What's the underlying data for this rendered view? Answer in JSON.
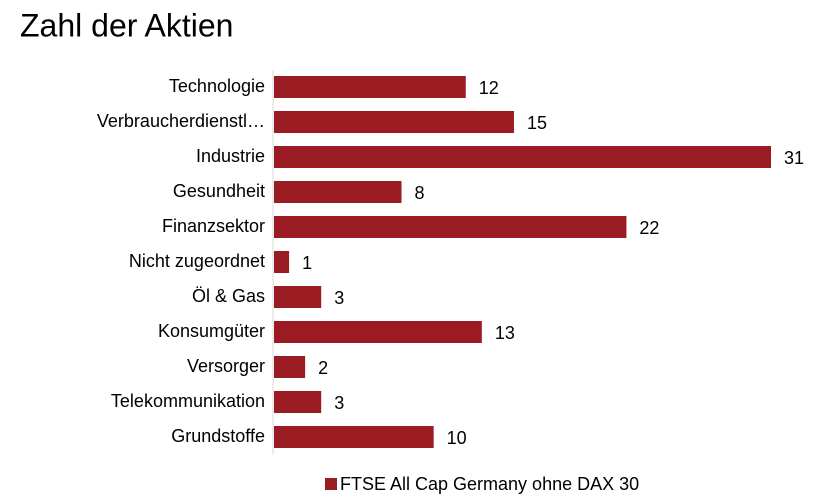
{
  "chart_data": {
    "type": "hbar",
    "title": "Zahl der Aktien",
    "categories": [
      "Technologie",
      "Verbraucherdienstl…",
      "Industrie",
      "Gesundheit",
      "Finanzsektor",
      "Nicht zugeordnet",
      "Öl & Gas",
      "Konsumgüter",
      "Versorger",
      "Telekommunikation",
      "Grundstoffe"
    ],
    "series": [
      {
        "name": "FTSE All Cap Germany ohne DAX 30",
        "color": "#9b1b23",
        "values": [
          12,
          15,
          31,
          8,
          22,
          1,
          3,
          13,
          2,
          3,
          10
        ]
      }
    ]
  }
}
